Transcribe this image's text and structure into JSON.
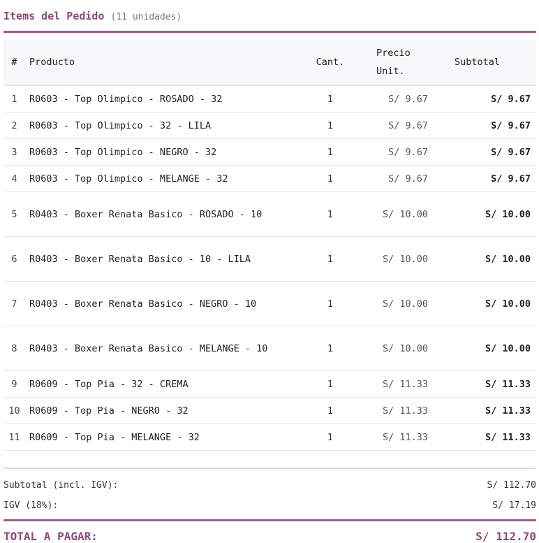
{
  "section": {
    "title": "Items del Pedido",
    "count": "(11 unidades)"
  },
  "table": {
    "headers": {
      "index": "#",
      "product": "Producto",
      "qty": "Cant.",
      "unit_price_1": "Precio",
      "unit_price_2": "Unit.",
      "subtotal": "Subtotal"
    },
    "rows": [
      {
        "index": "1",
        "product": "R0603 - Top Olimpico - ROSADO - 32",
        "qty": "1",
        "unit_price": "S/ 9.67",
        "subtotal": "S/ 9.67"
      },
      {
        "index": "2",
        "product": "R0603 - Top Olimpico - 32 - LILA",
        "qty": "1",
        "unit_price": "S/ 9.67",
        "subtotal": "S/ 9.67"
      },
      {
        "index": "3",
        "product": "R0603 - Top Olimpico - NEGRO - 32",
        "qty": "1",
        "unit_price": "S/ 9.67",
        "subtotal": "S/ 9.67"
      },
      {
        "index": "4",
        "product": "R0603 - Top Olimpico - MELANGE - 32",
        "qty": "1",
        "unit_price": "S/ 9.67",
        "subtotal": "S/ 9.67"
      },
      {
        "index": "5",
        "product": "R0403 - Boxer Renata Basico - ROSADO - 10",
        "qty": "1",
        "unit_price": "S/ 10.00",
        "subtotal": "S/ 10.00"
      },
      {
        "index": "6",
        "product": "R0403 - Boxer Renata Basico - 10 - LILA",
        "qty": "1",
        "unit_price": "S/ 10.00",
        "subtotal": "S/ 10.00"
      },
      {
        "index": "7",
        "product": "R0403 - Boxer Renata Basico - NEGRO - 10",
        "qty": "1",
        "unit_price": "S/ 10.00",
        "subtotal": "S/ 10.00"
      },
      {
        "index": "8",
        "product": "R0403 - Boxer Renata Basico - MELANGE - 10",
        "qty": "1",
        "unit_price": "S/ 10.00",
        "subtotal": "S/ 10.00"
      },
      {
        "index": "9",
        "product": "R0609 - Top Pia - 32 - CREMA",
        "qty": "1",
        "unit_price": "S/ 11.33",
        "subtotal": "S/ 11.33"
      },
      {
        "index": "10",
        "product": "R0609 - Top Pia - NEGRO - 32",
        "qty": "1",
        "unit_price": "S/ 11.33",
        "subtotal": "S/ 11.33"
      },
      {
        "index": "11",
        "product": "R0609 - Top Pia - MELANGE - 32",
        "qty": "1",
        "unit_price": "S/ 11.33",
        "subtotal": "S/ 11.33"
      }
    ]
  },
  "totals": {
    "subtotal_label": "Subtotal (incl. IGV):",
    "subtotal_value": "S/ 112.70",
    "igv_label": "IGV (18%):",
    "igv_value": "S/ 17.19",
    "total_label": "TOTAL A PAGAR:",
    "total_value": "S/ 112.70"
  },
  "colors": {
    "accent": "#a05a8c",
    "title": "#8a4a7a",
    "header_bg": "#f7f8f9"
  }
}
